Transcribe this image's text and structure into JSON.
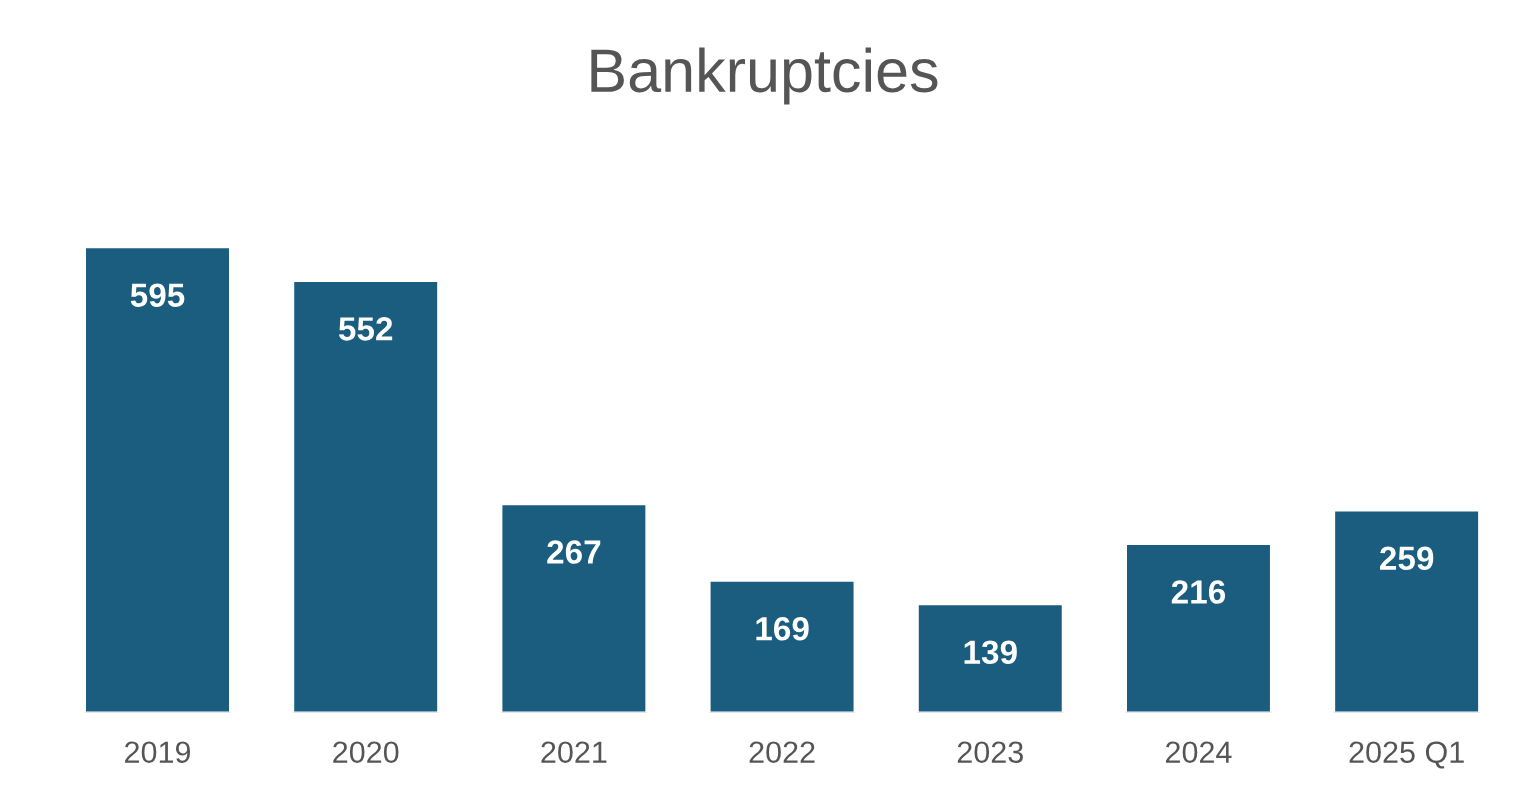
{
  "chart_data": {
    "type": "bar",
    "title": "Bankruptcies",
    "categories": [
      "2019",
      "2020",
      "2021",
      "2022",
      "2023",
      "2024",
      "2025 Q1"
    ],
    "values": [
      595,
      552,
      267,
      169,
      139,
      216,
      259
    ],
    "color": "#1a5d7f",
    "data_labels": true,
    "grid": false,
    "legend": false
  }
}
